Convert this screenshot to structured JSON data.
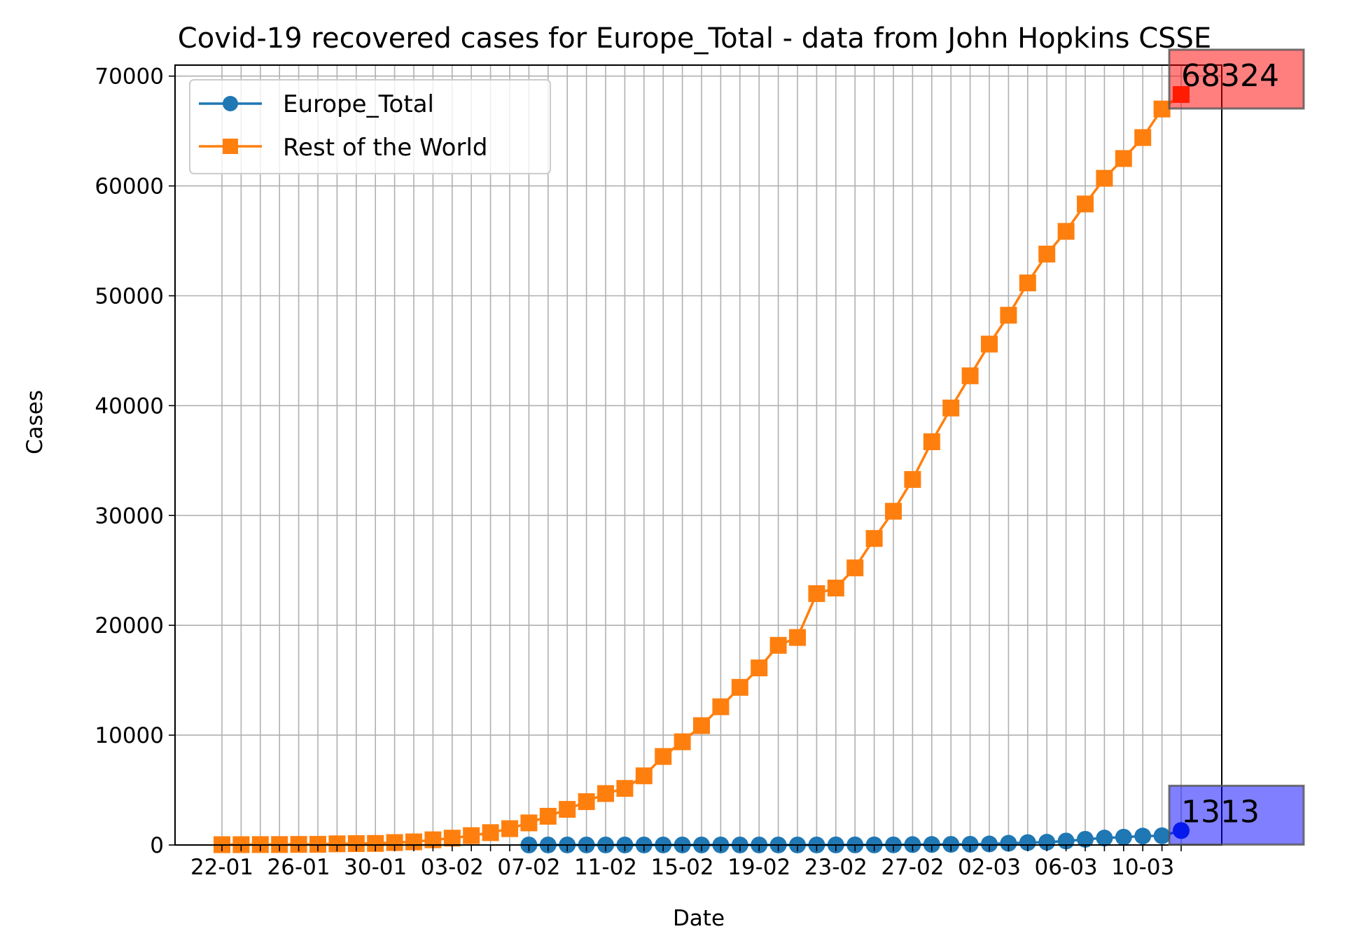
{
  "chart_data": {
    "type": "line",
    "title": "Covid-19 recovered cases for Europe_Total - data from John Hopkins CSSE",
    "xlabel": "Date",
    "ylabel": "Cases",
    "x": [
      "22-01",
      "23-01",
      "24-01",
      "25-01",
      "26-01",
      "27-01",
      "28-01",
      "29-01",
      "30-01",
      "31-01",
      "01-02",
      "02-02",
      "03-02",
      "04-02",
      "05-02",
      "06-02",
      "07-02",
      "08-02",
      "09-02",
      "10-02",
      "11-02",
      "12-02",
      "13-02",
      "14-02",
      "15-02",
      "16-02",
      "17-02",
      "18-02",
      "19-02",
      "20-02",
      "21-02",
      "22-02",
      "23-02",
      "24-02",
      "25-02",
      "26-02",
      "27-02",
      "28-02",
      "29-02",
      "01-03",
      "02-03",
      "03-03",
      "04-03",
      "05-03",
      "06-03",
      "07-03",
      "08-03",
      "09-03",
      "10-03",
      "11-03",
      "12-03"
    ],
    "xtick_labels": [
      "22-01",
      "26-01",
      "30-01",
      "03-02",
      "07-02",
      "11-02",
      "15-02",
      "19-02",
      "23-02",
      "27-02",
      "02-03",
      "06-03",
      "10-03"
    ],
    "ylim": [
      0,
      71000
    ],
    "yticks": [
      0,
      10000,
      20000,
      30000,
      40000,
      50000,
      60000,
      70000
    ],
    "ytick_labels": [
      "0",
      "10000",
      "20000",
      "30000",
      "40000",
      "50000",
      "60000",
      "70000"
    ],
    "grid": true,
    "legend_position": "top-left",
    "series": [
      {
        "name": "Europe_Total",
        "color": "#1f77b4",
        "marker": "circle",
        "values": [
          0,
          0,
          0,
          0,
          0,
          0,
          0,
          0,
          0,
          0,
          0,
          0,
          0,
          0,
          0,
          0,
          0,
          3,
          3,
          3,
          3,
          3,
          3,
          3,
          3,
          3,
          3,
          3,
          3,
          3,
          3,
          3,
          9,
          9,
          9,
          10,
          36,
          46,
          58,
          67,
          93,
          157,
          219,
          252,
          361,
          519,
          634,
          712,
          810,
          837,
          1313
        ]
      },
      {
        "name": "Rest of the World",
        "color": "#ff7f0e",
        "marker": "square",
        "values": [
          28,
          30,
          36,
          39,
          52,
          61,
          107,
          126,
          143,
          222,
          284,
          472,
          623,
          852,
          1124,
          1487,
          2011,
          2616,
          3244,
          3946,
          4683,
          5150,
          6295,
          8058,
          9395,
          10865,
          12583,
          14352,
          16121,
          18177,
          18890,
          22886,
          23394,
          25227,
          27905,
          30384,
          33277,
          36711,
          39782,
          42716,
          45602,
          48228,
          51171,
          53797,
          55866,
          58359,
          60694,
          62494,
          64404,
          67003,
          68324
        ]
      }
    ],
    "annotations": [
      {
        "text": "68324",
        "color": "#ff0000",
        "series": "Rest of the World"
      },
      {
        "text": "1313",
        "color": "#0000ff",
        "series": "Europe_Total"
      }
    ]
  }
}
